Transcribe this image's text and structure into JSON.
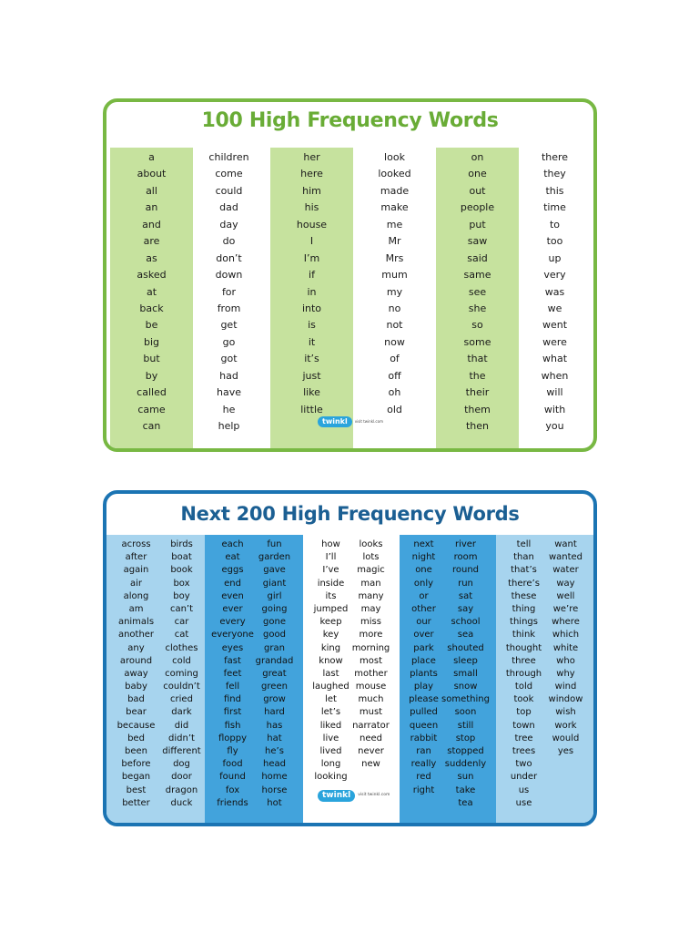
{
  "card1": {
    "title": "100 High Frequency Words",
    "columns": [
      [
        "a",
        "about",
        "all",
        "an",
        "and",
        "are",
        "as",
        "asked",
        "at",
        "back",
        "be",
        "big",
        "but",
        "by",
        "called",
        "came",
        "can"
      ],
      [
        "children",
        "come",
        "could",
        "dad",
        "day",
        "do",
        "don’t",
        "down",
        "for",
        "from",
        "get",
        "go",
        "got",
        "had",
        "have",
        "he",
        "help"
      ],
      [
        "her",
        "here",
        "him",
        "his",
        "house",
        "I",
        "I’m",
        "if",
        "in",
        "into",
        "is",
        "it",
        "it’s",
        "just",
        "like",
        "little"
      ],
      [
        "look",
        "looked",
        "made",
        "make",
        "me",
        "Mr",
        "Mrs",
        "mum",
        "my",
        "no",
        "not",
        "now",
        "of",
        "off",
        "oh",
        "old"
      ],
      [
        "on",
        "one",
        "out",
        "people",
        "put",
        "saw",
        "said",
        "same",
        "see",
        "she",
        "so",
        "some",
        "that",
        "the",
        "their",
        "them",
        "then"
      ],
      [
        "there",
        "they",
        "this",
        "time",
        "to",
        "too",
        "up",
        "very",
        "was",
        "we",
        "went",
        "were",
        "what",
        "when",
        "will",
        "with",
        "you"
      ]
    ],
    "logo": {
      "brand": "twinkl",
      "url": "visit twinkl.com"
    }
  },
  "card2": {
    "title": "Next 200 High Frequency Words",
    "columns": [
      [
        "across",
        "after",
        "again",
        "air",
        "along",
        "am",
        "animals",
        "another",
        "any",
        "around",
        "away",
        "baby",
        "bad",
        "bear",
        "because",
        "bed",
        "been",
        "before",
        "began",
        "best",
        "better"
      ],
      [
        "birds",
        "boat",
        "book",
        "box",
        "boy",
        "can’t",
        "car",
        "cat",
        "clothes",
        "cold",
        "coming",
        "couldn’t",
        "cried",
        "dark",
        "did",
        "didn’t",
        "different",
        "dog",
        "door",
        "dragon",
        "duck"
      ],
      [
        "each",
        "eat",
        "eggs",
        "end",
        "even",
        "ever",
        "every",
        "everyone",
        "eyes",
        "fast",
        "feet",
        "fell",
        "find",
        "first",
        "fish",
        "floppy",
        "fly",
        "food",
        "found",
        "fox",
        "friends"
      ],
      [
        "fun",
        "garden",
        "gave",
        "giant",
        "girl",
        "going",
        "gone",
        "good",
        "gran",
        "grandad",
        "great",
        "green",
        "grow",
        "hard",
        "has",
        "hat",
        "he’s",
        "head",
        "home",
        "horse",
        "hot"
      ],
      [
        "how",
        "I’ll",
        "I’ve",
        "inside",
        "its",
        "jumped",
        "keep",
        "key",
        "king",
        "know",
        "last",
        "laughed",
        "let",
        "let’s",
        "liked",
        "live",
        "lived",
        "long",
        "looking"
      ],
      [
        "looks",
        "lots",
        "magic",
        "man",
        "many",
        "may",
        "miss",
        "more",
        "morning",
        "most",
        "mother",
        "mouse",
        "much",
        "must",
        "narrator",
        "need",
        "never",
        "new"
      ],
      [
        "next",
        "night",
        "one",
        "only",
        "or",
        "other",
        "our",
        "over",
        "park",
        "place",
        "plants",
        "play",
        "please",
        "pulled",
        "queen",
        "rabbit",
        "ran",
        "really",
        "red",
        "right"
      ],
      [
        "river",
        "room",
        "round",
        "run",
        "sat",
        "say",
        "school",
        "sea",
        "shouted",
        "sleep",
        "small",
        "snow",
        "something",
        "soon",
        "still",
        "stop",
        "stopped",
        "suddenly",
        "sun",
        "take",
        "tea"
      ],
      [
        "tell",
        "than",
        "that’s",
        "there’s",
        "these",
        "thing",
        "things",
        "think",
        "thought",
        "three",
        "through",
        "told",
        "took",
        "top",
        "town",
        "tree",
        "trees",
        "two",
        "under",
        "us",
        "use"
      ],
      [
        "want",
        "wanted",
        "water",
        "way",
        "well",
        "we’re",
        "where",
        "which",
        "white",
        "who",
        "why",
        "wind",
        "window",
        "wish",
        "work",
        "would",
        "yes"
      ]
    ],
    "logo": {
      "brand": "twinkl",
      "url": "visit twinkl.com"
    }
  },
  "colors": {
    "green_border": "#78b843",
    "green_shade": "#c6e29e",
    "blue_border": "#1b74b3",
    "blue_light": "#a7d4ee",
    "blue_dark": "#42a3dc"
  }
}
